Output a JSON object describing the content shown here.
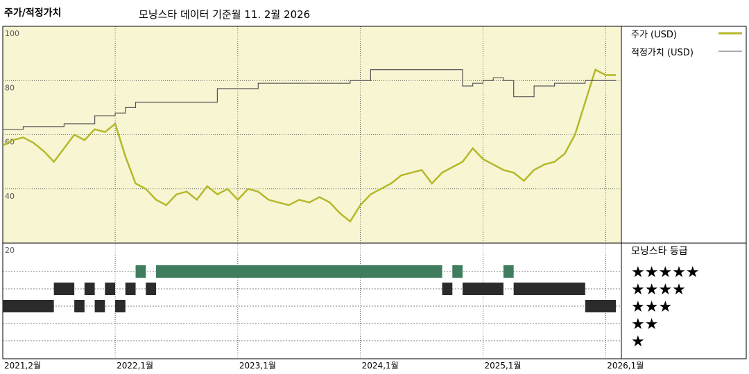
{
  "title": "주가/적정가치",
  "subtitle": "모닝스타 데이터 기준월 11. 2월 2026",
  "colors": {
    "price": "#b5b82a",
    "fair": "#555555",
    "panel_bg": "#f8f5d3",
    "green": "#3f7d5e",
    "dark": "#2b2b2b"
  },
  "legend": {
    "price": "주가 (USD)",
    "fair": "적정가치 (USD)"
  },
  "rating_title": "모닝스타 등급",
  "chart_data": {
    "type": "line",
    "ylim": [
      20,
      100
    ],
    "y_ticks": [
      20,
      40,
      60,
      80,
      100
    ],
    "x_range": [
      "2021-02",
      "2026-02"
    ],
    "x_ticks": [
      {
        "pos": "2021-02",
        "label": "2021,2월"
      },
      {
        "pos": "2022-01",
        "label": "2022,1월"
      },
      {
        "pos": "2023-01",
        "label": "2023,1월"
      },
      {
        "pos": "2024-01",
        "label": "2024,1월"
      },
      {
        "pos": "2025-01",
        "label": "2025,1월"
      },
      {
        "pos": "2026-01",
        "label": "2026,1월"
      }
    ],
    "series": [
      {
        "name": "주가 (USD)",
        "x": [
          "2021-02",
          "2021-03",
          "2021-04",
          "2021-05",
          "2021-06",
          "2021-07",
          "2021-08",
          "2021-09",
          "2021-10",
          "2021-11",
          "2021-12",
          "2022-01",
          "2022-02",
          "2022-03",
          "2022-04",
          "2022-05",
          "2022-06",
          "2022-07",
          "2022-08",
          "2022-09",
          "2022-10",
          "2022-11",
          "2022-12",
          "2023-01",
          "2023-02",
          "2023-03",
          "2023-04",
          "2023-05",
          "2023-06",
          "2023-07",
          "2023-08",
          "2023-09",
          "2023-10",
          "2023-11",
          "2023-12",
          "2024-01",
          "2024-02",
          "2024-03",
          "2024-04",
          "2024-05",
          "2024-06",
          "2024-07",
          "2024-08",
          "2024-09",
          "2024-10",
          "2024-11",
          "2024-12",
          "2025-01",
          "2025-02",
          "2025-03",
          "2025-04",
          "2025-05",
          "2025-06",
          "2025-07",
          "2025-08",
          "2025-09",
          "2025-10",
          "2025-11",
          "2025-12",
          "2026-01",
          "2026-02"
        ],
        "values": [
          56,
          58,
          59,
          57,
          54,
          50,
          55,
          60,
          58,
          62,
          61,
          64,
          52,
          42,
          40,
          36,
          34,
          38,
          39,
          36,
          41,
          38,
          40,
          36,
          40,
          39,
          36,
          35,
          34,
          36,
          35,
          37,
          35,
          31,
          28,
          34,
          38,
          40,
          42,
          45,
          46,
          47,
          42,
          46,
          48,
          50,
          55,
          51,
          49,
          47,
          46,
          43,
          47,
          49,
          50,
          53,
          60,
          72,
          84,
          82,
          82
        ]
      },
      {
        "name": "적정가치 (USD)",
        "x": [
          "2021-02",
          "2021-04",
          "2021-05",
          "2021-08",
          "2021-11",
          "2022-01",
          "2022-02",
          "2022-03",
          "2022-04",
          "2022-06",
          "2022-11",
          "2022-12",
          "2023-01",
          "2023-03",
          "2023-09",
          "2023-12",
          "2024-02",
          "2024-09",
          "2024-11",
          "2024-12",
          "2025-01",
          "2025-02",
          "2025-03",
          "2025-04",
          "2025-06",
          "2025-08",
          "2025-11",
          "2026-01",
          "2026-02"
        ],
        "values": [
          62,
          63,
          63,
          64,
          67,
          68,
          70,
          72,
          72,
          72,
          77,
          77,
          77,
          79,
          79,
          80,
          84,
          84,
          78,
          79,
          80,
          81,
          80,
          74,
          78,
          79,
          80,
          80,
          80
        ]
      }
    ],
    "ratings": {
      "labels": [
        "★★★★★",
        "★★★★",
        "★★★",
        "★★",
        "★"
      ],
      "periods": [
        {
          "start": "2021-02",
          "end": "2021-07",
          "stars": 3
        },
        {
          "start": "2021-07",
          "end": "2021-09",
          "stars": 4
        },
        {
          "start": "2021-09",
          "end": "2021-10",
          "stars": 3
        },
        {
          "start": "2021-10",
          "end": "2021-11",
          "stars": 4
        },
        {
          "start": "2021-11",
          "end": "2021-12",
          "stars": 3
        },
        {
          "start": "2021-12",
          "end": "2022-01",
          "stars": 4
        },
        {
          "start": "2022-01",
          "end": "2022-02",
          "stars": 3
        },
        {
          "start": "2022-02",
          "end": "2022-03",
          "stars": 4
        },
        {
          "start": "2022-03",
          "end": "2022-04",
          "stars": 5
        },
        {
          "start": "2022-04",
          "end": "2022-05",
          "stars": 4
        },
        {
          "start": "2022-05",
          "end": "2024-09",
          "stars": 5
        },
        {
          "start": "2024-09",
          "end": "2024-10",
          "stars": 4
        },
        {
          "start": "2024-10",
          "end": "2024-11",
          "stars": 5
        },
        {
          "start": "2024-11",
          "end": "2025-03",
          "stars": 4
        },
        {
          "start": "2025-03",
          "end": "2025-04",
          "stars": 5
        },
        {
          "start": "2025-04",
          "end": "2025-11",
          "stars": 4
        },
        {
          "start": "2025-11",
          "end": "2026-02",
          "stars": 3
        }
      ]
    }
  }
}
